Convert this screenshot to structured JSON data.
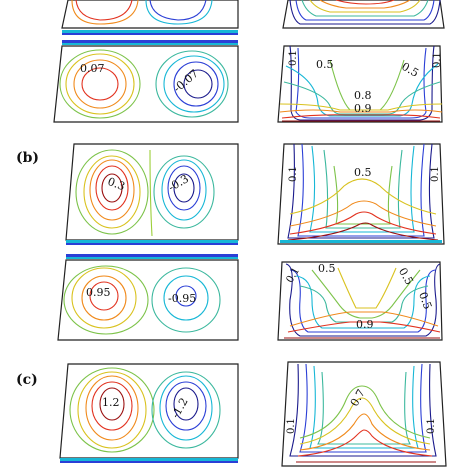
{
  "panel_labels": {
    "b": "(b)",
    "c": "(c)"
  },
  "palette": {
    "dark_blue": "#1a1a8c",
    "blue": "#2b3fd6",
    "cyan": "#17b7d6",
    "teal": "#3cb89e",
    "green": "#7dc34a",
    "yellow": "#d9c21f",
    "orange": "#f08a1c",
    "red": "#e2321f",
    "dark_red": "#9b1010",
    "frame": "#222222"
  },
  "contour_labels": {
    "a_bottom_left_pos": "0.07",
    "a_bottom_left_neg": "-0.07",
    "a_bottom_right_outer_left": "0.1",
    "a_bottom_right_outer_right": "0.1",
    "a_bottom_right_mid_left": "0.5",
    "a_bottom_right_mid_right": "0.5",
    "a_bottom_right_high": "0.8",
    "a_bottom_right_top": "0.9",
    "b_top_left_pos": "0.3",
    "b_top_left_neg": "-0.3",
    "b_top_right_outer_left": "0.1",
    "b_top_right_outer_right": "0.1",
    "b_top_right_mid": "0.5",
    "b_bottom_left_pos": "0.95",
    "b_bottom_left_neg": "-0.95",
    "b_bottom_right_outer_left": "0.1",
    "b_bottom_right_mid_left": "0.5",
    "b_bottom_right_mid_right": "0.5",
    "b_bottom_right_mid_right2": "0.5",
    "b_bottom_right_high": "0.9",
    "c_top_left_pos": "1.2",
    "c_top_left_neg": "-1.2",
    "c_top_right_outer_left": "0.1",
    "c_top_right_outer_right": "0.1",
    "c_top_right_high": "0.7"
  }
}
